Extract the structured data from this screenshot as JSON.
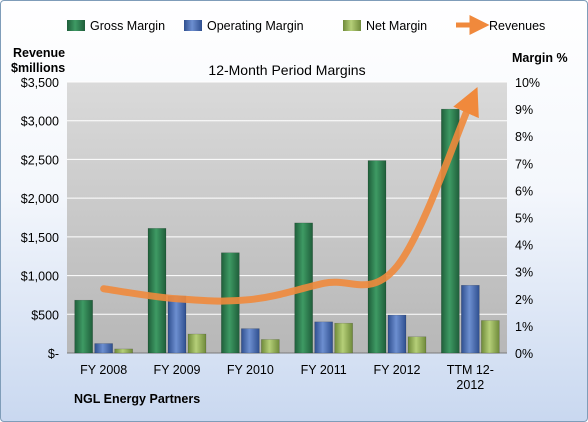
{
  "chart_data": {
    "type": "bar",
    "title": "12-Month Period Margins",
    "company": "NGL Energy Partners",
    "y_left_label_line1": "Revenue",
    "y_left_label_line2": "$millions",
    "y_right_label": "Margin %",
    "categories": [
      "FY 2008",
      "FY 2009",
      "FY 2010",
      "FY 2011",
      "FY 2012",
      "TTM 12-2012"
    ],
    "category_lines": [
      [
        "FY 2008"
      ],
      [
        "FY 2009"
      ],
      [
        "FY 2010"
      ],
      [
        "FY 2011"
      ],
      [
        "FY 2012"
      ],
      [
        "TTM 12-",
        "2012"
      ]
    ],
    "left_ticks": [
      "$-",
      "$500",
      "$1,000",
      "$1,500",
      "$2,000",
      "$2,500",
      "$3,000",
      "$3,500"
    ],
    "right_ticks": [
      "0%",
      "1%",
      "2%",
      "3%",
      "4%",
      "5%",
      "6%",
      "7%",
      "8%",
      "9%",
      "10%"
    ],
    "ylim_left": [
      0,
      3500
    ],
    "ylim_right": [
      0,
      10
    ],
    "grid": true,
    "legend_position": "top",
    "series": [
      {
        "name": "Gross Margin",
        "axis": "right",
        "unit": "%",
        "values": [
          1.95,
          4.6,
          3.7,
          4.8,
          7.1,
          9.0
        ],
        "color": "#2e7d4f"
      },
      {
        "name": "Operating Margin",
        "axis": "right",
        "unit": "%",
        "values": [
          0.35,
          2.1,
          0.9,
          1.15,
          1.4,
          2.5
        ],
        "color": "#4a6fb5"
      },
      {
        "name": "Net Margin",
        "axis": "right",
        "unit": "%",
        "values": [
          0.15,
          0.7,
          0.5,
          1.1,
          0.6,
          1.2
        ],
        "color": "#9bbb59"
      }
    ],
    "line_series": {
      "name": "Revenues",
      "type": "line",
      "axis": "left",
      "unit": "$ millions",
      "values": [
        830,
        700,
        690,
        900,
        1120,
        3230
      ],
      "color": "#f0893c"
    }
  }
}
